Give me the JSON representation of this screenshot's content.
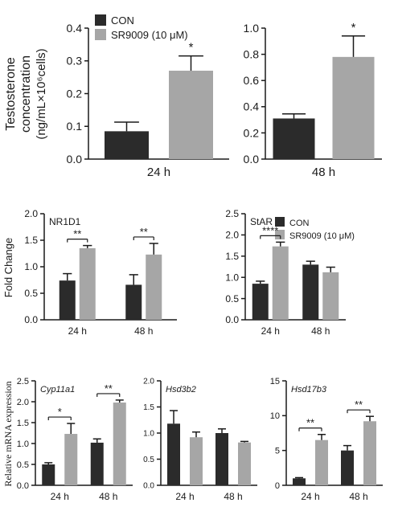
{
  "colors": {
    "con": "#2b2b2b",
    "sr": "#a6a6a6"
  },
  "legend_top": {
    "con": "CON",
    "sr": "SR9009 (10 μM)"
  },
  "legend_mid": {
    "con": "CON",
    "sr": "SR9009 (10 μM)"
  },
  "ylabels": {
    "top_line1": "Testosterone",
    "top_line2": "concentration",
    "top_line3": "(ng/mL×10⁶cells)",
    "mid": "Fold Change",
    "bot": "Relative mRNA expression"
  },
  "chart_data": [
    {
      "type": "bar",
      "panel": "top-left",
      "categories": [
        "24 h"
      ],
      "series": [
        {
          "name": "CON",
          "values": [
            0.085
          ],
          "errors": [
            0.028
          ]
        },
        {
          "name": "SR9009 (10 μM)",
          "values": [
            0.27
          ],
          "errors": [
            0.045
          ]
        }
      ],
      "ylim": [
        0,
        0.4
      ],
      "yticks": [
        "0.0",
        "0.1",
        "0.2",
        "0.3",
        "0.4"
      ],
      "sig": [
        "*"
      ]
    },
    {
      "type": "bar",
      "panel": "top-right",
      "categories": [
        "48 h"
      ],
      "series": [
        {
          "name": "CON",
          "values": [
            0.31
          ],
          "errors": [
            0.035
          ]
        },
        {
          "name": "SR9009 (10 μM)",
          "values": [
            0.78
          ],
          "errors": [
            0.16
          ]
        }
      ],
      "ylim": [
        0,
        1.0
      ],
      "yticks": [
        "0.0",
        "0.2",
        "0.4",
        "0.6",
        "0.8",
        "1.0"
      ],
      "sig": [
        "*"
      ]
    },
    {
      "type": "bar",
      "panel": "mid-left",
      "title": "NR1D1",
      "categories": [
        "24 h",
        "48 h"
      ],
      "series": [
        {
          "name": "CON",
          "values": [
            0.74,
            0.66
          ],
          "errors": [
            0.13,
            0.19
          ]
        },
        {
          "name": "SR9009 (10 μM)",
          "values": [
            1.35,
            1.23
          ],
          "errors": [
            0.05,
            0.21
          ]
        }
      ],
      "ylim": [
        0,
        2.0
      ],
      "yticks": [
        "0.0",
        "0.5",
        "1.0",
        "1.5",
        "2.0"
      ],
      "sig": [
        "**",
        "**"
      ]
    },
    {
      "type": "bar",
      "panel": "mid-right",
      "title": "StAR",
      "categories": [
        "24 h",
        "48 h"
      ],
      "series": [
        {
          "name": "CON",
          "values": [
            0.85,
            1.3
          ],
          "errors": [
            0.06,
            0.08
          ]
        },
        {
          "name": "SR9009 (10 μM)",
          "values": [
            1.73,
            1.12
          ],
          "errors": [
            0.1,
            0.12
          ]
        }
      ],
      "ylim": [
        0,
        2.5
      ],
      "yticks": [
        "0.0",
        "0.5",
        "1.0",
        "1.5",
        "2.0",
        "2.5"
      ],
      "sig": [
        "****",
        ""
      ]
    },
    {
      "type": "bar",
      "panel": "bot-left",
      "title": "Cyp11a1",
      "categories": [
        "24 h",
        "48 h"
      ],
      "series": [
        {
          "name": "CON",
          "values": [
            0.5,
            1.02
          ],
          "errors": [
            0.04,
            0.09
          ]
        },
        {
          "name": "SR9009 (10 μM)",
          "values": [
            1.23,
            1.98
          ],
          "errors": [
            0.25,
            0.06
          ]
        }
      ],
      "ylim": [
        0,
        2.5
      ],
      "yticks": [
        "0.0",
        "0.5",
        "1.0",
        "1.5",
        "2.0",
        "2.5"
      ],
      "sig": [
        "*",
        "**"
      ]
    },
    {
      "type": "bar",
      "panel": "bot-mid",
      "title": "Hsd3b2",
      "categories": [
        "24 h",
        "48 h"
      ],
      "series": [
        {
          "name": "CON",
          "values": [
            1.18,
            1.0
          ],
          "errors": [
            0.25,
            0.08
          ]
        },
        {
          "name": "SR9009 (10 μM)",
          "values": [
            0.92,
            0.82
          ],
          "errors": [
            0.1,
            0.02
          ]
        }
      ],
      "ylim": [
        0,
        2.0
      ],
      "yticks": [
        "0.0",
        "0.5",
        "1.0",
        "1.5",
        "2.0"
      ],
      "sig": [
        "",
        ""
      ]
    },
    {
      "type": "bar",
      "panel": "bot-right",
      "title": "Hsd17b3",
      "categories": [
        "24 h",
        "48 h"
      ],
      "series": [
        {
          "name": "CON",
          "values": [
            1.0,
            5.0
          ],
          "errors": [
            0.1,
            0.7
          ]
        },
        {
          "name": "SR9009 (10 μM)",
          "values": [
            6.5,
            9.2
          ],
          "errors": [
            0.8,
            0.7
          ]
        }
      ],
      "ylim": [
        0,
        15
      ],
      "yticks": [
        "0",
        "5",
        "10",
        "15"
      ],
      "sig": [
        "**",
        "**"
      ]
    }
  ]
}
